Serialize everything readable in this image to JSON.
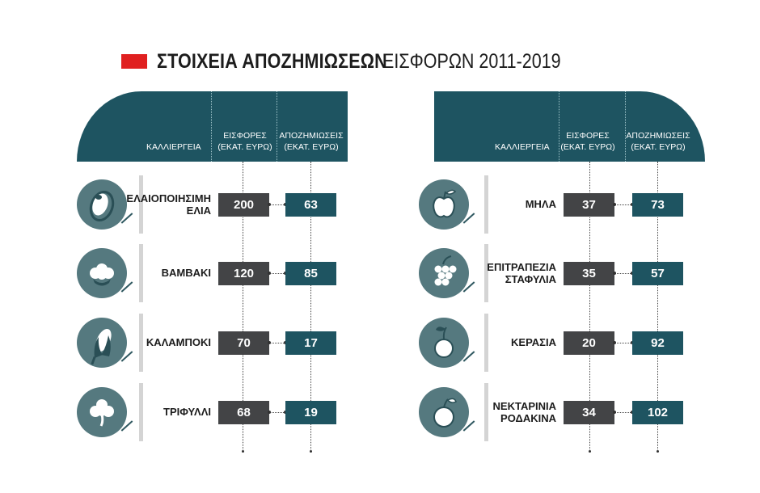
{
  "title": {
    "bold": "ΣΤΟΙΧΕΙΑ ΑΠΟΖΗΜΙΩΣΕΩΝ",
    "light": "ΕΙΣΦΟΡΩΝ 2011-2019",
    "mark_color": "#e02020"
  },
  "headers": {
    "crop": "ΚΑΛΛΙΕΡΓΕΙΑ",
    "contrib_1": "ΕΙΣΦΟΡΕΣ",
    "contrib_2": "(ΕΚΑΤ. ΕΥΡΩ)",
    "comp_1": "ΑΠΟΖΗΜΙΩΣΕΙΣ",
    "comp_2": "(ΕΚΑΤ. ΕΥΡΩ)"
  },
  "colors": {
    "header": "#1e5461",
    "contrib_box": "#434446",
    "comp_box": "#1e5461",
    "icon_bg": "#55797f"
  },
  "chart_data": {
    "type": "table",
    "title": "ΣΤΟΙΧΕΙΑ ΑΠΟΖΗΜΙΩΣΕΩΝ ΕΙΣΦΟΡΩΝ 2011-2019",
    "columns": [
      "ΚΑΛΛΙΕΡΓΕΙΑ",
      "ΕΙΣΦΟΡΕΣ (ΕΚΑΤ. ΕΥΡΩ)",
      "ΑΠΟΖΗΜΙΩΣΕΙΣ (ΕΚΑΤ. ΕΥΡΩ)"
    ],
    "left": [
      {
        "crop_1": "ΕΛΑΙΟΠΟΙΗΣΙΜΗ",
        "crop_2": "ΕΛΙΑ",
        "contrib": "200",
        "comp": "63",
        "icon": "olive-icon"
      },
      {
        "crop_1": "ΒΑΜΒΑΚΙ",
        "crop_2": "",
        "contrib": "120",
        "comp": "85",
        "icon": "cotton-icon"
      },
      {
        "crop_1": "ΚΑΛΑΜΠΟΚΙ",
        "crop_2": "",
        "contrib": "70",
        "comp": "17",
        "icon": "corn-icon"
      },
      {
        "crop_1": "ΤΡΙΦΥΛΛΙ",
        "crop_2": "",
        "contrib": "68",
        "comp": "19",
        "icon": "clover-icon"
      }
    ],
    "right": [
      {
        "crop_1": "ΜΗΛΑ",
        "crop_2": "",
        "contrib": "37",
        "comp": "73",
        "icon": "apple-icon"
      },
      {
        "crop_1": "ΕΠΙΤΡΑΠΕΖΙΑ",
        "crop_2": "ΣΤΑΦΥΛΙΑ",
        "contrib": "35",
        "comp": "57",
        "icon": "grapes-icon"
      },
      {
        "crop_1": "ΚΕΡΑΣΙΑ",
        "crop_2": "",
        "contrib": "20",
        "comp": "92",
        "icon": "cherry-icon"
      },
      {
        "crop_1": "ΝΕΚΤΑΡΙΝΙΑ",
        "crop_2": "ΡΟΔΑΚΙΝΑ",
        "contrib": "34",
        "comp": "102",
        "icon": "peach-icon"
      }
    ]
  }
}
